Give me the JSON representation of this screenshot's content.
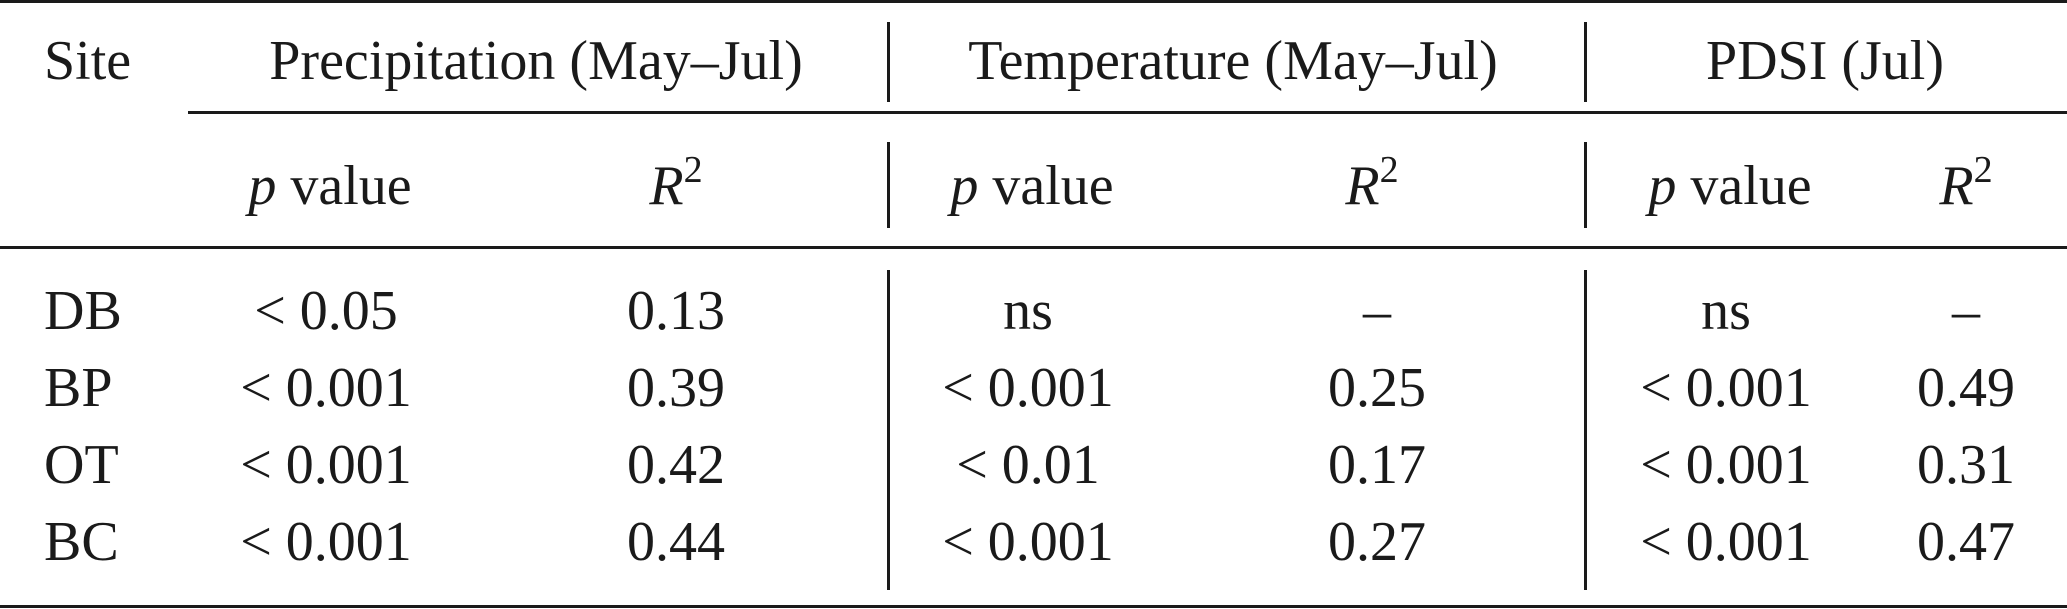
{
  "table": {
    "header": {
      "site_label": "Site",
      "groups": [
        {
          "label": "Precipitation (May–Jul)"
        },
        {
          "label": "Temperature (May–Jul)"
        },
        {
          "label": "PDSI (Jul)"
        }
      ],
      "sub": {
        "p_italic": "p",
        "p_rest": " value",
        "r_italic": "R",
        "r_sup": "2"
      }
    },
    "rows": [
      {
        "site": "DB",
        "cells": [
          "< 0.05",
          "0.13",
          "ns",
          "–",
          "ns",
          "–"
        ]
      },
      {
        "site": "BP",
        "cells": [
          "< 0.001",
          "0.39",
          "< 0.001",
          "0.25",
          "< 0.001",
          "0.49"
        ]
      },
      {
        "site": "OT",
        "cells": [
          "< 0.001",
          "0.42",
          "< 0.01",
          "0.17",
          "< 0.001",
          "0.31"
        ]
      },
      {
        "site": "BC",
        "cells": [
          "< 0.001",
          "0.44",
          "< 0.001",
          "0.27",
          "< 0.001",
          "0.47"
        ]
      }
    ]
  }
}
